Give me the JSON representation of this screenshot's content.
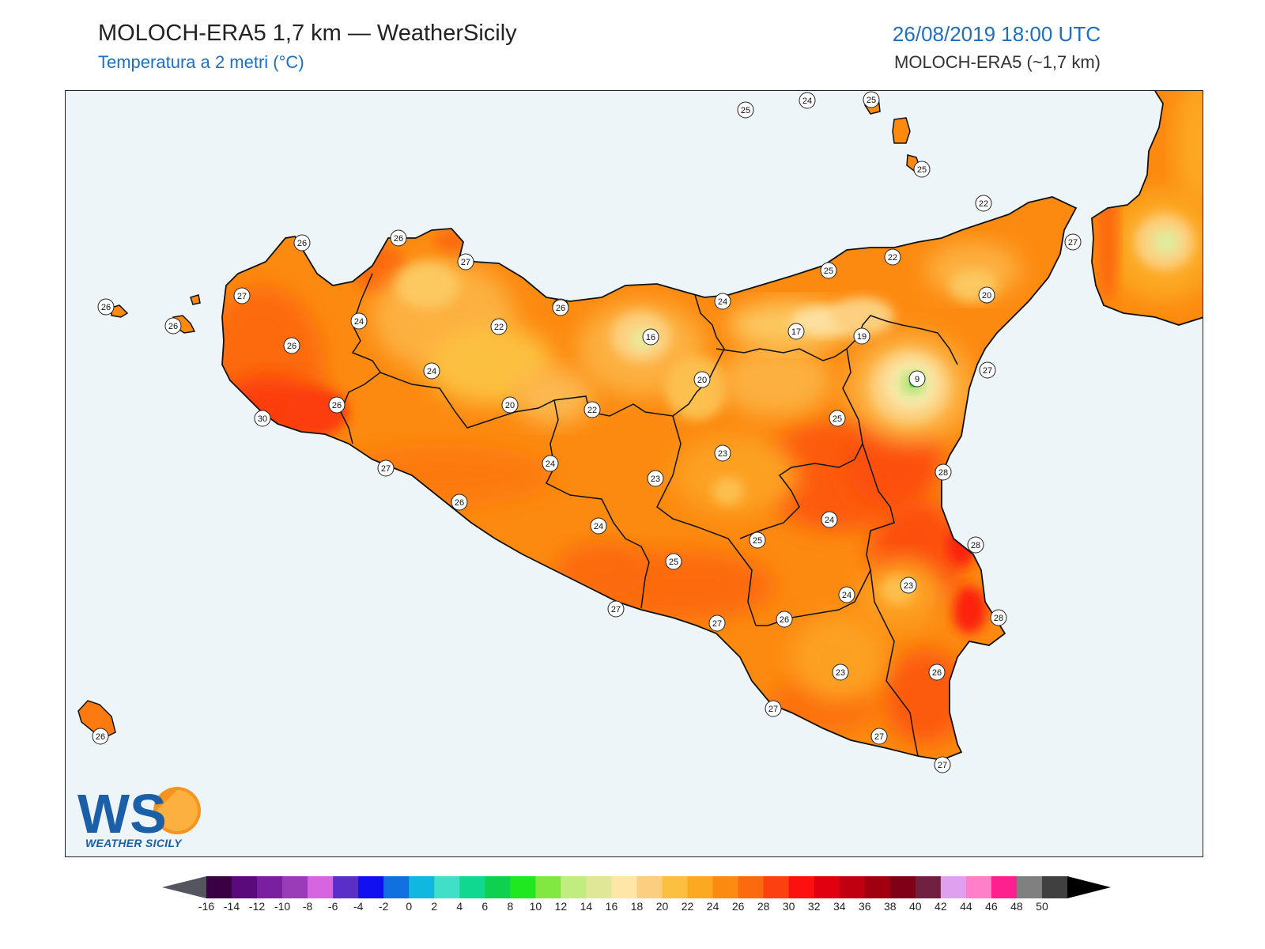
{
  "header": {
    "title": "MOLOCH-ERA5 1,7 km — WeatherSicily",
    "subtitle": "Temperatura a 2 metri (°C)",
    "datetime": "26/08/2019 18:00 UTC",
    "model": "MOLOCH-ERA5 (~1,7 km)"
  },
  "logo": {
    "letters": "WS",
    "text": "WEATHER SICILY"
  },
  "colors": {
    "sea": "#eef5f9",
    "title_blue": "#1f6fbf",
    "border": "#111111"
  },
  "colorbar": {
    "labels": [
      "-16",
      "-14",
      "-12",
      "-10",
      "-8",
      "-6",
      "-4",
      "-2",
      "0",
      "2",
      "4",
      "6",
      "8",
      "10",
      "12",
      "14",
      "16",
      "18",
      "20",
      "22",
      "24",
      "26",
      "28",
      "30",
      "32",
      "34",
      "36",
      "38",
      "40",
      "42",
      "44",
      "46",
      "48",
      "50"
    ],
    "colors": [
      "#3b0044",
      "#5a0a7a",
      "#7a1fa0",
      "#9a3cb8",
      "#d666e0",
      "#5a2fc8",
      "#1010f0",
      "#1070e0",
      "#10b8e0",
      "#40e0c8",
      "#10d890",
      "#10d050",
      "#20e820",
      "#80e840",
      "#c0ec80",
      "#e0e898",
      "#fde6a8",
      "#fccf80",
      "#fcc040",
      "#fca820",
      "#fc8a10",
      "#fc6a10",
      "#fc4010",
      "#fc1010",
      "#e00010",
      "#c00010",
      "#a00010",
      "#800018",
      "#702040",
      "#e0a0f0",
      "#ff80c8",
      "#ff2090",
      "#808080",
      "#404040"
    ],
    "under_color": "#555560",
    "over_color": "#000000"
  },
  "stations": [
    {
      "value": "25"
    },
    {
      "value": "24"
    },
    {
      "value": "25"
    },
    {
      "value": "25"
    },
    {
      "value": "26"
    },
    {
      "value": "27"
    },
    {
      "value": "26"
    },
    {
      "value": "26"
    },
    {
      "value": "27"
    },
    {
      "value": "26"
    },
    {
      "value": "26"
    },
    {
      "value": "24"
    },
    {
      "value": "26"
    },
    {
      "value": "24"
    },
    {
      "value": "26"
    },
    {
      "value": "30"
    },
    {
      "value": "22"
    },
    {
      "value": "20"
    },
    {
      "value": "16"
    },
    {
      "value": "20"
    },
    {
      "value": "22"
    },
    {
      "value": "24"
    },
    {
      "value": "17"
    },
    {
      "value": "19"
    },
    {
      "value": "25"
    },
    {
      "value": "22"
    },
    {
      "value": "20"
    },
    {
      "value": "9"
    },
    {
      "value": "27"
    },
    {
      "value": "22"
    },
    {
      "value": "25"
    },
    {
      "value": "27"
    },
    {
      "value": "28"
    },
    {
      "value": "23"
    },
    {
      "value": "23"
    },
    {
      "value": "24"
    },
    {
      "value": "27"
    },
    {
      "value": "26"
    },
    {
      "value": "26"
    },
    {
      "value": "24"
    },
    {
      "value": "25"
    },
    {
      "value": "24"
    },
    {
      "value": "25"
    },
    {
      "value": "28"
    },
    {
      "value": "23"
    },
    {
      "value": "24"
    },
    {
      "value": "27"
    },
    {
      "value": "27"
    },
    {
      "value": "26"
    },
    {
      "value": "28"
    },
    {
      "value": "23"
    },
    {
      "value": "26"
    },
    {
      "value": "27"
    },
    {
      "value": "27"
    },
    {
      "value": "27"
    },
    {
      "value": "26"
    }
  ]
}
